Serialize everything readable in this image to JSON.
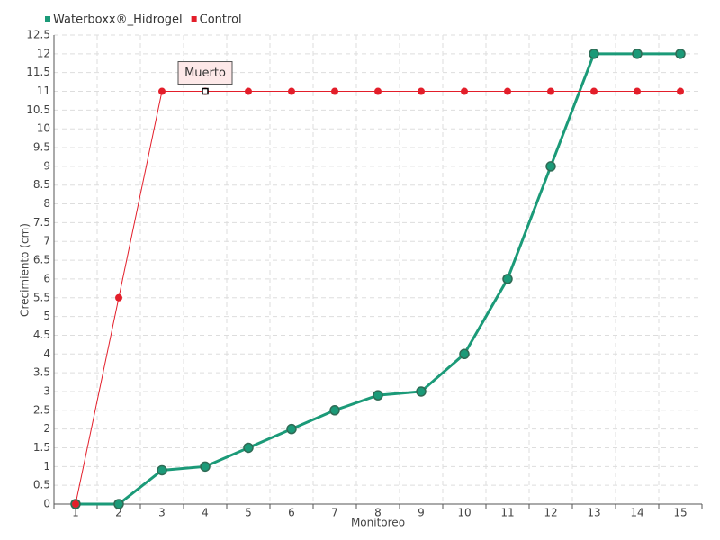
{
  "chart_data": {
    "type": "line",
    "x_label": "Monitoreo",
    "y_label": "Crecimiento (cm)",
    "categories": [
      "1",
      "2",
      "3",
      "4",
      "5",
      "6",
      "7",
      "8",
      "9",
      "10",
      "11",
      "12",
      "13",
      "14",
      "15"
    ],
    "series": [
      {
        "name": "Waterboxx®_Hidrogel",
        "color": "#1b9a78",
        "values": [
          0,
          0,
          0.9,
          1,
          1.5,
          2,
          2.5,
          2.9,
          3,
          4,
          6,
          9,
          12,
          12,
          12
        ]
      },
      {
        "name": "Control",
        "color": "#e31e2a",
        "values": [
          0,
          5.5,
          11,
          11,
          11,
          11,
          11,
          11,
          11,
          11,
          11,
          11,
          11,
          11,
          11
        ]
      }
    ],
    "ylim": [
      0,
      12.5
    ],
    "yticks": [
      0,
      0.5,
      1,
      1.5,
      2,
      2.5,
      3,
      3.5,
      4,
      4.5,
      5,
      5.5,
      6,
      6.5,
      7,
      7.5,
      8,
      8.5,
      9,
      9.5,
      10,
      10.5,
      11,
      11.5,
      12,
      12.5
    ],
    "grid": true,
    "legend": "top-left",
    "annotations": [
      {
        "text": "Muerto",
        "series": "Control",
        "x": "4"
      }
    ]
  }
}
